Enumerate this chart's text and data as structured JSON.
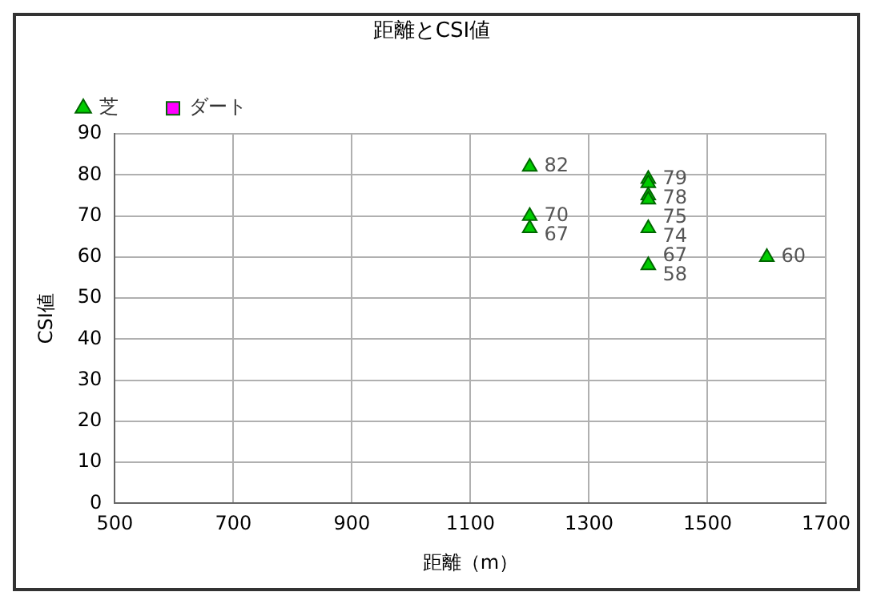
{
  "chart_data": {
    "type": "scatter",
    "title": "距離とCSI値",
    "xlabel": "距離（m）",
    "ylabel": "CSI値",
    "xlim": [
      500,
      1700
    ],
    "xticks": [
      500,
      700,
      900,
      1100,
      1300,
      1500,
      1700
    ],
    "ylim": [
      0,
      90
    ],
    "yticks": [
      0,
      10,
      20,
      30,
      40,
      50,
      60,
      70,
      80,
      90
    ],
    "series": [
      {
        "name": "芝",
        "color": "#00cc00",
        "marker": "triangle",
        "x": [
          1200,
          1200,
          1200,
          1400,
          1400,
          1400,
          1400,
          1400,
          1400,
          1600
        ],
        "values": [
          82,
          70,
          67,
          79,
          78,
          75,
          74,
          67,
          58,
          60
        ]
      },
      {
        "name": "ダート",
        "color": "#ff00ff",
        "marker": "square"
      }
    ],
    "data_labels": true,
    "grid": true,
    "legend": "top left"
  }
}
